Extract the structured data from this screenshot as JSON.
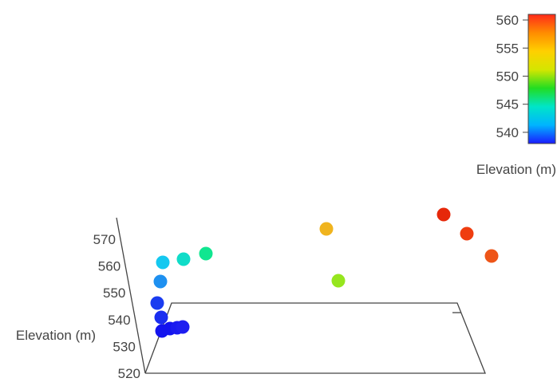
{
  "chart_data": {
    "type": "scatter",
    "subtype": "3d-scatter",
    "zlabel": "Elevation (m)",
    "zlim": [
      520,
      578
    ],
    "z_ticks": [
      520,
      530,
      540,
      550,
      560,
      570
    ],
    "colorbar": {
      "title": "Elevation (m)",
      "range": [
        538,
        561
      ],
      "ticks": [
        540,
        545,
        550,
        555,
        560
      ],
      "colorscale": [
        "#1a1aff",
        "#00b4ff",
        "#00e5c8",
        "#22dd22",
        "#d4e600",
        "#ffd000",
        "#ff8c00",
        "#ff2a1a"
      ]
    },
    "points": [
      {
        "elevation": 539,
        "color": "#1414ee"
      },
      {
        "elevation": 539,
        "color": "#1414ee"
      },
      {
        "elevation": 540,
        "color": "#1a1af0"
      },
      {
        "elevation": 540,
        "color": "#1e1ef0"
      },
      {
        "elevation": 544,
        "color": "#1a2ef0"
      },
      {
        "elevation": 550,
        "color": "#1a3cf0"
      },
      {
        "elevation": 558,
        "color": "#1e90f0"
      },
      {
        "elevation": 565,
        "color": "#14c8f0"
      },
      {
        "elevation": 566,
        "color": "#10dcc8"
      },
      {
        "elevation": 568,
        "color": "#10e690"
      },
      {
        "elevation": 558,
        "color": "#96e61e"
      },
      {
        "elevation": 577,
        "color": "#f0b41e"
      },
      {
        "elevation": 560,
        "color": "#e6280a"
      },
      {
        "elevation": 555,
        "color": "#ef3d10"
      },
      {
        "elevation": 550,
        "color": "#ee5518"
      }
    ]
  }
}
